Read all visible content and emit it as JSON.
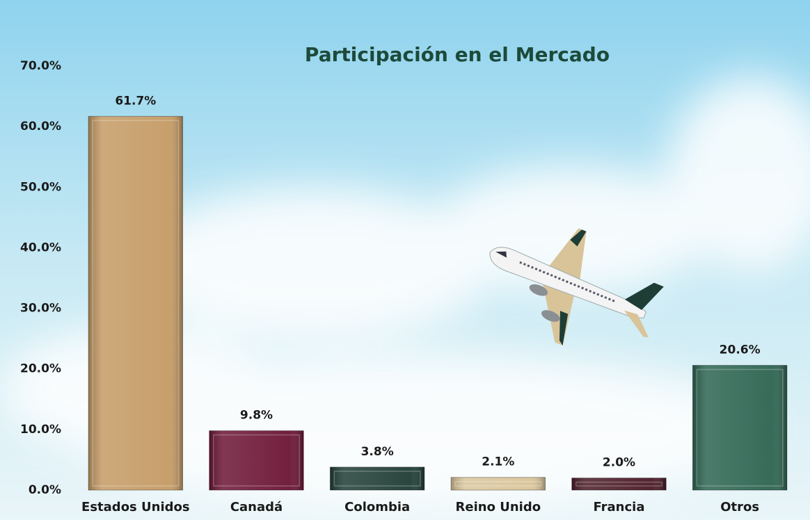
{
  "chart_data": {
    "type": "bar",
    "title": "Participación en el Mercado",
    "categories": [
      "Estados Unidos",
      "Canadá",
      "Colombia",
      "Reino Unido",
      "Francia",
      "Otros"
    ],
    "values": [
      61.7,
      9.8,
      3.8,
      2.1,
      2.0,
      20.6
    ],
    "value_labels": [
      "61.7%",
      "9.8%",
      "3.8%",
      "2.1%",
      "2.0%",
      "20.6%"
    ],
    "colors": [
      "#c49a64",
      "#6b1434",
      "#1e3d34",
      "#d9c49a",
      "#4a1a26",
      "#2c6450"
    ],
    "ylim": [
      0,
      70
    ],
    "yticks": [
      {
        "value": 0,
        "label": "0.0%"
      },
      {
        "value": 10,
        "label": "10.0%"
      },
      {
        "value": 20,
        "label": "20.0%"
      },
      {
        "value": 30,
        "label": "30.0%"
      },
      {
        "value": 40,
        "label": "40.0%"
      },
      {
        "value": 50,
        "label": "50.0%"
      },
      {
        "value": 60,
        "label": "60.0%"
      },
      {
        "value": 70,
        "label": "70.0%"
      }
    ],
    "grid": false
  }
}
